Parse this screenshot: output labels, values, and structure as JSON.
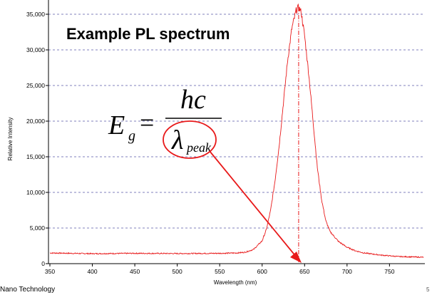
{
  "chart_data": {
    "type": "line",
    "title": "Example PL spectrum",
    "xlabel": "Wavelength (nm)",
    "ylabel": "Relative Intensity",
    "xlim": [
      350,
      790
    ],
    "ylim": [
      0,
      36000
    ],
    "x_ticks": [
      350,
      400,
      450,
      500,
      550,
      600,
      650,
      700,
      750
    ],
    "y_ticks": [
      0,
      5000,
      10000,
      15000,
      20000,
      25000,
      30000,
      35000
    ],
    "x_tick_labels": [
      "350",
      "400",
      "450",
      "500",
      "550",
      "600",
      "650",
      "700",
      "750"
    ],
    "y_tick_labels": [
      "0",
      "5,000",
      "10,000",
      "15,000",
      "20,000",
      "25,000",
      "30,000",
      "35,000"
    ],
    "grid": "horizontal dashed",
    "series": [
      {
        "color": "#e8191a",
        "x": [
          350,
          400,
          450,
          500,
          550,
          570,
          580,
          590,
          600,
          605,
          610,
          615,
          620,
          625,
          630,
          635,
          640,
          643,
          646,
          650,
          655,
          660,
          665,
          670,
          675,
          680,
          690,
          700,
          710,
          720,
          740,
          760,
          790
        ],
        "y": [
          1500,
          1400,
          1450,
          1420,
          1450,
          1500,
          1600,
          2000,
          3200,
          4800,
          7500,
          11500,
          16500,
          22500,
          28500,
          33000,
          35500,
          36000,
          35300,
          32000,
          26500,
          20000,
          13500,
          9000,
          6000,
          4500,
          3100,
          2300,
          1800,
          1500,
          1200,
          1000,
          900
        ]
      }
    ],
    "peak_marker_x": 643,
    "annotations": {
      "formula_lhs": "E",
      "formula_lhs_sub": "g",
      "formula_equals": "=",
      "formula_numerator": "hc",
      "formula_denominator": "λ",
      "formula_denominator_sub": "peak"
    }
  },
  "colors": {
    "series": "#e8191a",
    "grid": "#5a5aa8",
    "annotation": "#e8191a",
    "axes": "#000000"
  },
  "footer": {
    "left_text": "Nano Technology",
    "right_mark": "5"
  }
}
